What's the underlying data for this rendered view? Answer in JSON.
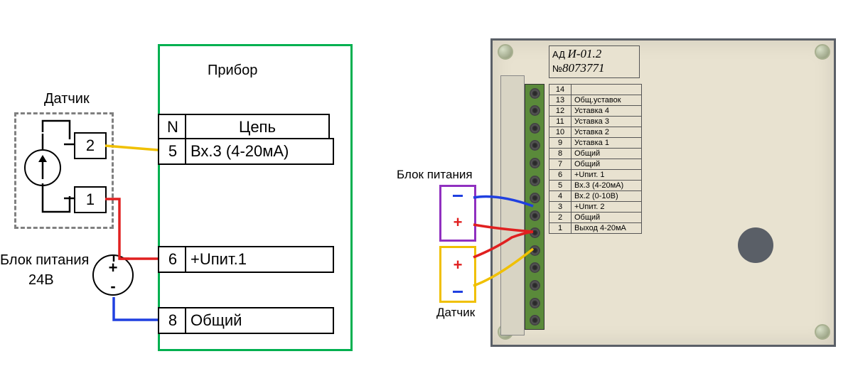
{
  "diagram": {
    "labels": {
      "device": "Прибор",
      "sensor": "Датчик",
      "power": "Блок питания",
      "power_v": "24В"
    },
    "sensor_terminals": [
      "2",
      "1"
    ],
    "device_table": {
      "header": {
        "n": "N",
        "circuit": "Цепь"
      },
      "rows": [
        {
          "n": "5",
          "txt": "Вх.3 (4-20мА)"
        },
        {
          "n": "6",
          "txt": "+Uпит.1"
        },
        {
          "n": "8",
          "txt": "Общий"
        }
      ]
    },
    "power_symbols": {
      "plus": "+",
      "minus": "-"
    },
    "wires": {
      "sensor2_to_dev5": "#f0c000",
      "sensor1_to_plus": "#e02020",
      "plus_to_dev6": "#e02020",
      "minus_to_dev8": "#2040e0",
      "sensor_internal": "#000000"
    },
    "colors": {
      "device_border": "#00b050",
      "dashed": "#808080"
    }
  },
  "photo": {
    "labels": {
      "power": "Блок питания",
      "sensor": "Датчик",
      "model_prefix": "АД",
      "model": "И-01.2",
      "serial_prefix": "№",
      "serial": "8073771"
    },
    "power_block": {
      "border": "#9030c0",
      "plus_color": "#e02020",
      "minus_color": "#2040e0"
    },
    "sensor_block": {
      "border": "#f0c000",
      "plus_color": "#e02020",
      "minus_color": "#2040e0"
    },
    "wires": {
      "power_minus": "#2040e0",
      "power_plus": "#e02020",
      "sensor_plus": "#e02020",
      "sensor_minus": "#f0c000"
    },
    "terminal_rows": [
      {
        "n": "14",
        "txt": ""
      },
      {
        "n": "13",
        "txt": "Общ.уставок"
      },
      {
        "n": "12",
        "txt": "Уставка 4"
      },
      {
        "n": "11",
        "txt": "Уставка 3"
      },
      {
        "n": "10",
        "txt": "Уставка 2"
      },
      {
        "n": "9",
        "txt": "Уставка 1"
      },
      {
        "n": "8",
        "txt": "Общий"
      },
      {
        "n": "7",
        "txt": "Общий"
      },
      {
        "n": "6",
        "txt": "+Uпит. 1"
      },
      {
        "n": "5",
        "txt": "Вх.3 (4-20мА)"
      },
      {
        "n": "4",
        "txt": "Вх.2 (0-10В)"
      },
      {
        "n": "3",
        "txt": "+Uпит. 2"
      },
      {
        "n": "2",
        "txt": "Общий"
      },
      {
        "n": "1",
        "txt": "Выход 4-20мА"
      }
    ]
  }
}
